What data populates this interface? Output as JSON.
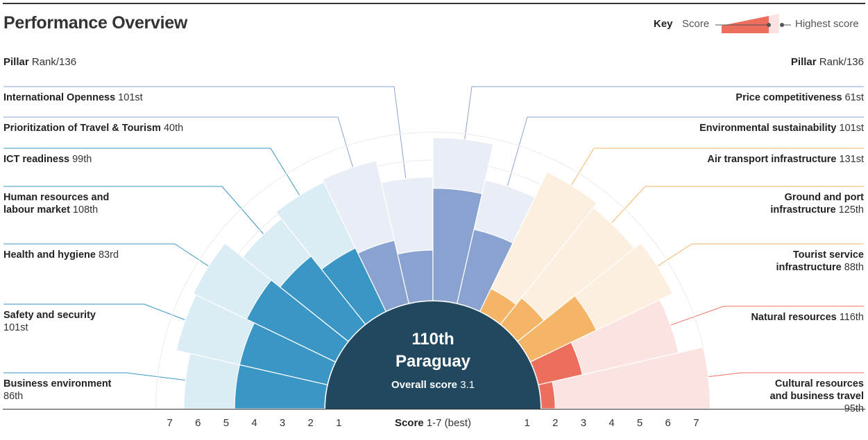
{
  "header": {
    "title": "Performance Overview",
    "key_label": "Key",
    "key_score": "Score",
    "key_highest": "Highest score",
    "pillar_label": "Pillar",
    "rank_label": "Rank/136"
  },
  "center": {
    "rank": "110th",
    "country": "Paraguay",
    "overall_label": "Overall score",
    "overall_value": "3.1"
  },
  "axis": {
    "title": "Score",
    "title_note": "1-7 (best)",
    "left_ticks": [
      "7",
      "6",
      "5",
      "4",
      "3",
      "2",
      "1"
    ],
    "right_ticks": [
      "1",
      "2",
      "3",
      "4",
      "5",
      "6",
      "7"
    ]
  },
  "colors": {
    "blue": "#3a96c4",
    "blue_light": "#daecf4",
    "purple": "#8aa2cf",
    "purple_light": "#e9eef6",
    "orange": "#f5b566",
    "orange_light": "#fdefdf",
    "red": "#ec6e5c",
    "red_light": "#fbe3e1",
    "center": "#21485f"
  },
  "chart_data": {
    "type": "radial-bar",
    "scale": [
      1,
      7
    ],
    "series": [
      {
        "name": "Score"
      },
      {
        "name": "Highest score"
      }
    ],
    "pillars": [
      {
        "name": "Business environment",
        "rank": "86th",
        "score": 4.2,
        "highest": 6.0,
        "group": "blue"
      },
      {
        "name": "Safety and security",
        "rank": "101st",
        "score": 4.2,
        "highest": 6.5,
        "group": "blue"
      },
      {
        "name": "Health and hygiene",
        "rank": "83rd",
        "score": 4.5,
        "highest": 6.6,
        "group": "blue"
      },
      {
        "name": "Human resources and labour market",
        "rank": "108th",
        "score": 4.1,
        "highest": 5.8,
        "group": "blue"
      },
      {
        "name": "ICT readiness",
        "rank": "99th",
        "score": 3.5,
        "highest": 6.1,
        "group": "blue"
      },
      {
        "name": "Prioritization of Travel & Tourism",
        "rank": "40th",
        "score": 3.3,
        "highest": 6.2,
        "group": "purple"
      },
      {
        "name": "International Openness",
        "rank": "101st",
        "score": 2.8,
        "highest": 5.4,
        "group": "purple"
      },
      {
        "name": "Price competitiveness",
        "rank": "61st",
        "score": 5.0,
        "highest": 6.8,
        "group": "purple"
      },
      {
        "name": "Environmental sustainability",
        "rank": "101st",
        "score": 3.7,
        "highest": 5.5,
        "group": "purple"
      },
      {
        "name": "Air transport infrastructure",
        "rank": "131st",
        "score": 1.9,
        "highest": 6.5,
        "group": "orange"
      },
      {
        "name": "Ground and port infrastructure",
        "rank": "125th",
        "score": 2.2,
        "highest": 6.3,
        "group": "orange"
      },
      {
        "name": "Tourist service infrastructure",
        "rank": "88th",
        "score": 3.6,
        "highest": 6.6,
        "group": "orange"
      },
      {
        "name": "Natural resources",
        "rank": "116th",
        "score": 2.6,
        "highest": 6.1,
        "group": "red"
      },
      {
        "name": "Cultural resources and business travel",
        "rank": "95th",
        "score": 1.5,
        "highest": 7.0,
        "group": "red"
      }
    ]
  }
}
